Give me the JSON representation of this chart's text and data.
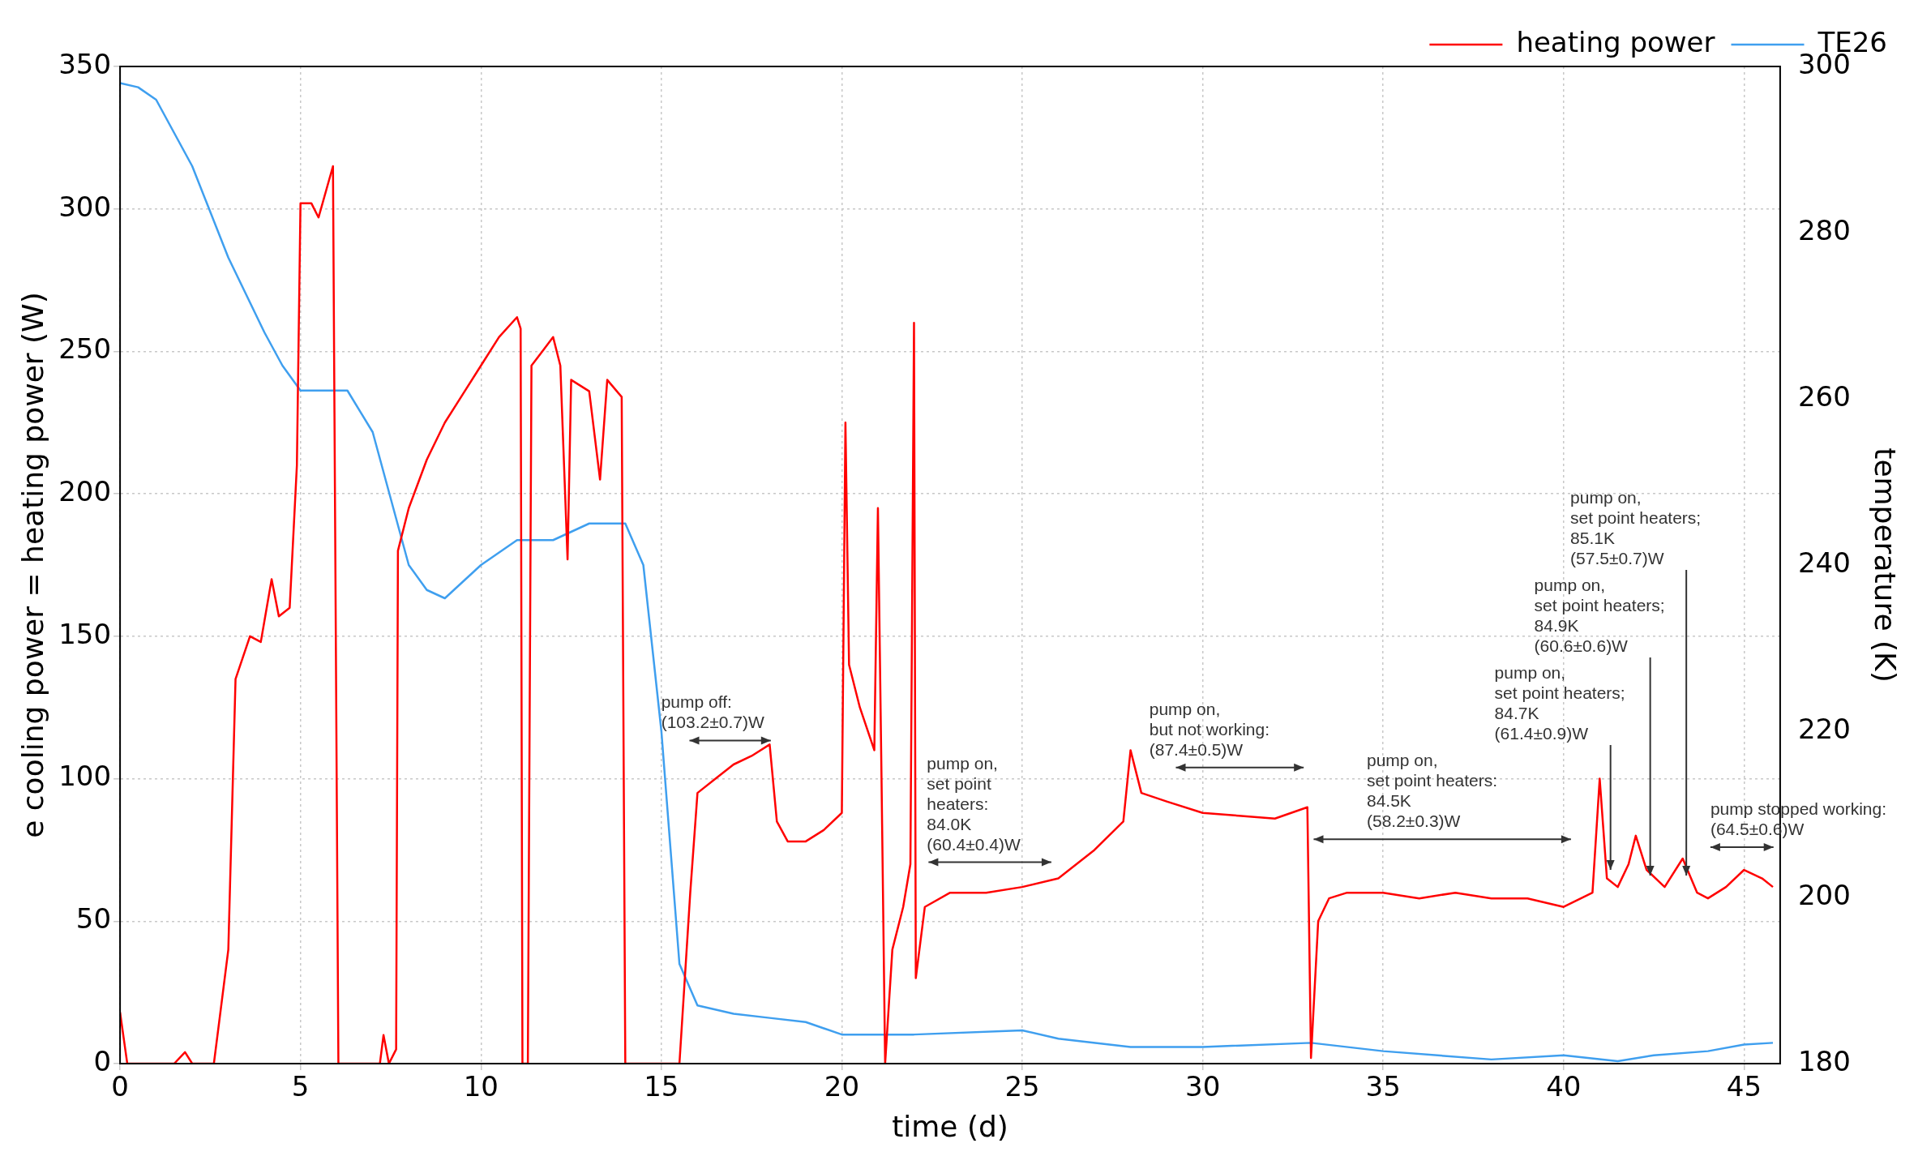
{
  "chart_data": {
    "type": "line",
    "xlabel": "time (d)",
    "ylabel": "e cooling power = heating power (W)",
    "y2label": "temperature (K)",
    "xlim": [
      0,
      46
    ],
    "xticks": [
      0,
      5,
      10,
      15,
      20,
      25,
      30,
      35,
      40,
      45
    ],
    "ylim": [
      0,
      350
    ],
    "yticks": [
      0,
      50,
      100,
      150,
      200,
      250,
      300,
      350
    ],
    "y2lim": [
      180,
      300
    ],
    "y2ticks": [
      180,
      200,
      220,
      240,
      260,
      280,
      300
    ],
    "grid": true,
    "legend": "top right",
    "series": [
      {
        "name": "heating power",
        "color": "#ff0000",
        "axis": "y",
        "x": [
          0,
          0.2,
          1.5,
          1.8,
          2.0,
          2.6,
          3.0,
          3.2,
          3.6,
          3.9,
          4.2,
          4.4,
          4.7,
          4.9,
          5.0,
          5.3,
          5.5,
          5.9,
          6.05,
          7.2,
          7.3,
          7.45,
          7.65,
          7.7,
          8.0,
          8.5,
          9.0,
          9.5,
          10.0,
          10.5,
          11.0,
          11.1,
          11.15,
          11.3,
          11.4,
          11.7,
          12.0,
          12.2,
          12.4,
          12.5,
          13.0,
          13.3,
          13.5,
          13.9,
          14.0,
          15.5,
          15.8,
          16.0,
          16.5,
          17.0,
          17.5,
          18.0,
          18.2,
          18.5,
          19.0,
          19.5,
          20.0,
          20.1,
          20.2,
          20.5,
          20.9,
          21.0,
          21.1,
          21.2,
          21.4,
          21.7,
          21.9,
          22.0,
          22.05,
          22.3,
          23.0,
          24.0,
          25.0,
          26.0,
          27.0,
          27.8,
          28.0,
          28.3,
          29.0,
          30.0,
          31.0,
          32.0,
          32.9,
          33.0,
          33.2,
          33.5,
          34.0,
          35.0,
          36.0,
          37.0,
          38.0,
          39.0,
          40.0,
          40.8,
          41.0,
          41.2,
          41.5,
          41.8,
          42.0,
          42.3,
          42.8,
          43.3,
          43.7,
          44.0,
          44.5,
          45.0,
          45.5,
          45.8
        ],
        "values": [
          18,
          0,
          0,
          4,
          0,
          0,
          40,
          135,
          150,
          148,
          170,
          157,
          160,
          210,
          302,
          302,
          297,
          315,
          0,
          0,
          10,
          0,
          5,
          180,
          195,
          212,
          225,
          235,
          245,
          255,
          262,
          258,
          0,
          0,
          245,
          250,
          255,
          245,
          177,
          240,
          236,
          205,
          240,
          234,
          0,
          0,
          60,
          95,
          100,
          105,
          108,
          112,
          85,
          78,
          78,
          82,
          88,
          225,
          140,
          125,
          110,
          195,
          100,
          0,
          40,
          55,
          70,
          260,
          30,
          55,
          60,
          60,
          62,
          65,
          75,
          85,
          110,
          95,
          92,
          88,
          87,
          86,
          90,
          2,
          50,
          58,
          60,
          60,
          58,
          60,
          58,
          58,
          55,
          60,
          100,
          65,
          62,
          70,
          80,
          68,
          62,
          72,
          60,
          58,
          62,
          68,
          65,
          62
        ]
      },
      {
        "name": "TE26",
        "color": "#3f9fef",
        "axis": "y2",
        "x": [
          0,
          0.5,
          1.0,
          2.0,
          3.0,
          4.0,
          4.5,
          5.0,
          5.5,
          6.3,
          7.0,
          7.5,
          8.0,
          8.5,
          9.0,
          10.0,
          11.0,
          12.0,
          13.0,
          14.0,
          14.5,
          15.0,
          15.5,
          16.0,
          17.0,
          18.0,
          19.0,
          20.0,
          21.0,
          22.0,
          25.0,
          26.0,
          28.0,
          30.0,
          33.0,
          35.0,
          38.0,
          40.0,
          41.5,
          42.5,
          44.0,
          45.0,
          45.8
        ],
        "values": [
          298,
          297.5,
          296,
          288,
          277,
          268,
          264,
          261,
          261,
          261,
          256,
          248,
          240,
          237,
          236,
          240,
          243,
          243,
          245,
          245,
          240,
          220,
          192,
          187,
          186,
          185.5,
          185,
          183.5,
          183.5,
          183.5,
          184,
          183,
          182,
          182,
          182.5,
          181.5,
          180.5,
          181,
          180.3,
          181,
          181.5,
          182.3,
          182.5
        ]
      }
    ],
    "annotations": [
      "pump off:\n(103.2±0.7)W",
      "pump on,\nset point\nheaters:\n84.0K\n(60.4±0.4)W",
      "pump on,\nbut not working:\n(87.4±0.5)W",
      "pump on,\nset point heaters:\n84.5K\n(58.2±0.3)W",
      "pump stopped working:\n(64.5±0.6)W",
      {
        "text": "pump on,\nset point heaters;\n84.7K\n(61.4±0.9)W",
        "x": 41.3,
        "y": 68
      },
      {
        "text": "pump on,\nset point heaters;\n84.9K\n(60.6±0.6)W",
        "x": 42.4,
        "y": 66
      },
      {
        "text": "pump on,\nset point heaters;\n85.1K\n(57.5±0.7)W",
        "x": 43.4,
        "y": 66
      }
    ]
  }
}
